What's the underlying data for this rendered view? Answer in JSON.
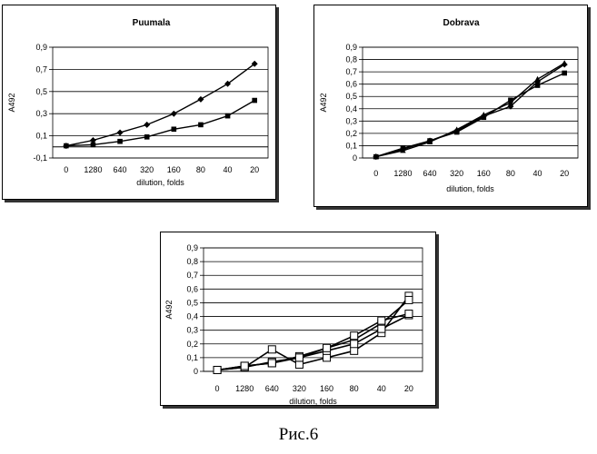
{
  "figure_caption": "Рис.6",
  "chart_data": [
    {
      "type": "line",
      "title": "Puumala",
      "xlabel": "dilution, folds",
      "ylabel": "A492",
      "categories": [
        "0",
        "1280",
        "640",
        "320",
        "160",
        "80",
        "40",
        "20"
      ],
      "ylim": [
        -0.1,
        0.9
      ],
      "yticks": [
        "-0,1",
        "0,1",
        "0,3",
        "0,5",
        "0,7",
        "0,9"
      ],
      "grid": true,
      "legend": "none",
      "series": [
        {
          "marker": "diamond",
          "values": [
            0.01,
            0.06,
            0.13,
            0.2,
            0.3,
            0.43,
            0.57,
            0.75
          ]
        },
        {
          "marker": "square",
          "values": [
            0.01,
            0.02,
            0.05,
            0.09,
            0.16,
            0.2,
            0.28,
            0.42
          ]
        }
      ]
    },
    {
      "type": "line",
      "title": "Dobrava",
      "xlabel": "dilution, folds",
      "ylabel": "A492",
      "categories": [
        "0",
        "1280",
        "640",
        "320",
        "160",
        "80",
        "40",
        "20"
      ],
      "ylim": [
        0,
        0.9
      ],
      "yticks": [
        "0",
        "0,1",
        "0,2",
        "0,3",
        "0,4",
        "0,5",
        "0,6",
        "0,7",
        "0,8",
        "0,9"
      ],
      "grid": true,
      "legend": "none",
      "series": [
        {
          "marker": "diamond",
          "values": [
            0.01,
            0.07,
            0.14,
            0.22,
            0.34,
            0.42,
            0.62,
            0.76
          ]
        },
        {
          "marker": "square",
          "values": [
            0.01,
            0.08,
            0.14,
            0.21,
            0.33,
            0.47,
            0.59,
            0.69
          ]
        },
        {
          "marker": "triangle",
          "values": [
            0.01,
            0.06,
            0.13,
            0.23,
            0.35,
            0.45,
            0.64,
            0.77
          ]
        }
      ]
    },
    {
      "type": "line",
      "title": "",
      "xlabel": "dilution, folds",
      "ylabel": "A492",
      "categories": [
        "0",
        "1280",
        "640",
        "320",
        "160",
        "80",
        "40",
        "20"
      ],
      "ylim": [
        0,
        0.9
      ],
      "yticks": [
        "0",
        "0,1",
        "0,2",
        "0,3",
        "0,4",
        "0,5",
        "0,6",
        "0,7",
        "0,8",
        "0,9"
      ],
      "grid": true,
      "legend": "none",
      "series": [
        {
          "marker": "open-square",
          "values": [
            0.01,
            0.03,
            0.16,
            0.05,
            0.1,
            0.15,
            0.28,
            0.55
          ]
        },
        {
          "marker": "open-square",
          "values": [
            0.01,
            0.04,
            0.06,
            0.11,
            0.17,
            0.23,
            0.35,
            0.52
          ]
        },
        {
          "marker": "open-square",
          "values": [
            0.01,
            0.03,
            0.07,
            0.1,
            0.15,
            0.2,
            0.31,
            0.41
          ]
        },
        {
          "marker": "open-square",
          "values": [
            0.01,
            0.04,
            0.06,
            0.1,
            0.17,
            0.26,
            0.37,
            0.42
          ]
        }
      ]
    }
  ]
}
